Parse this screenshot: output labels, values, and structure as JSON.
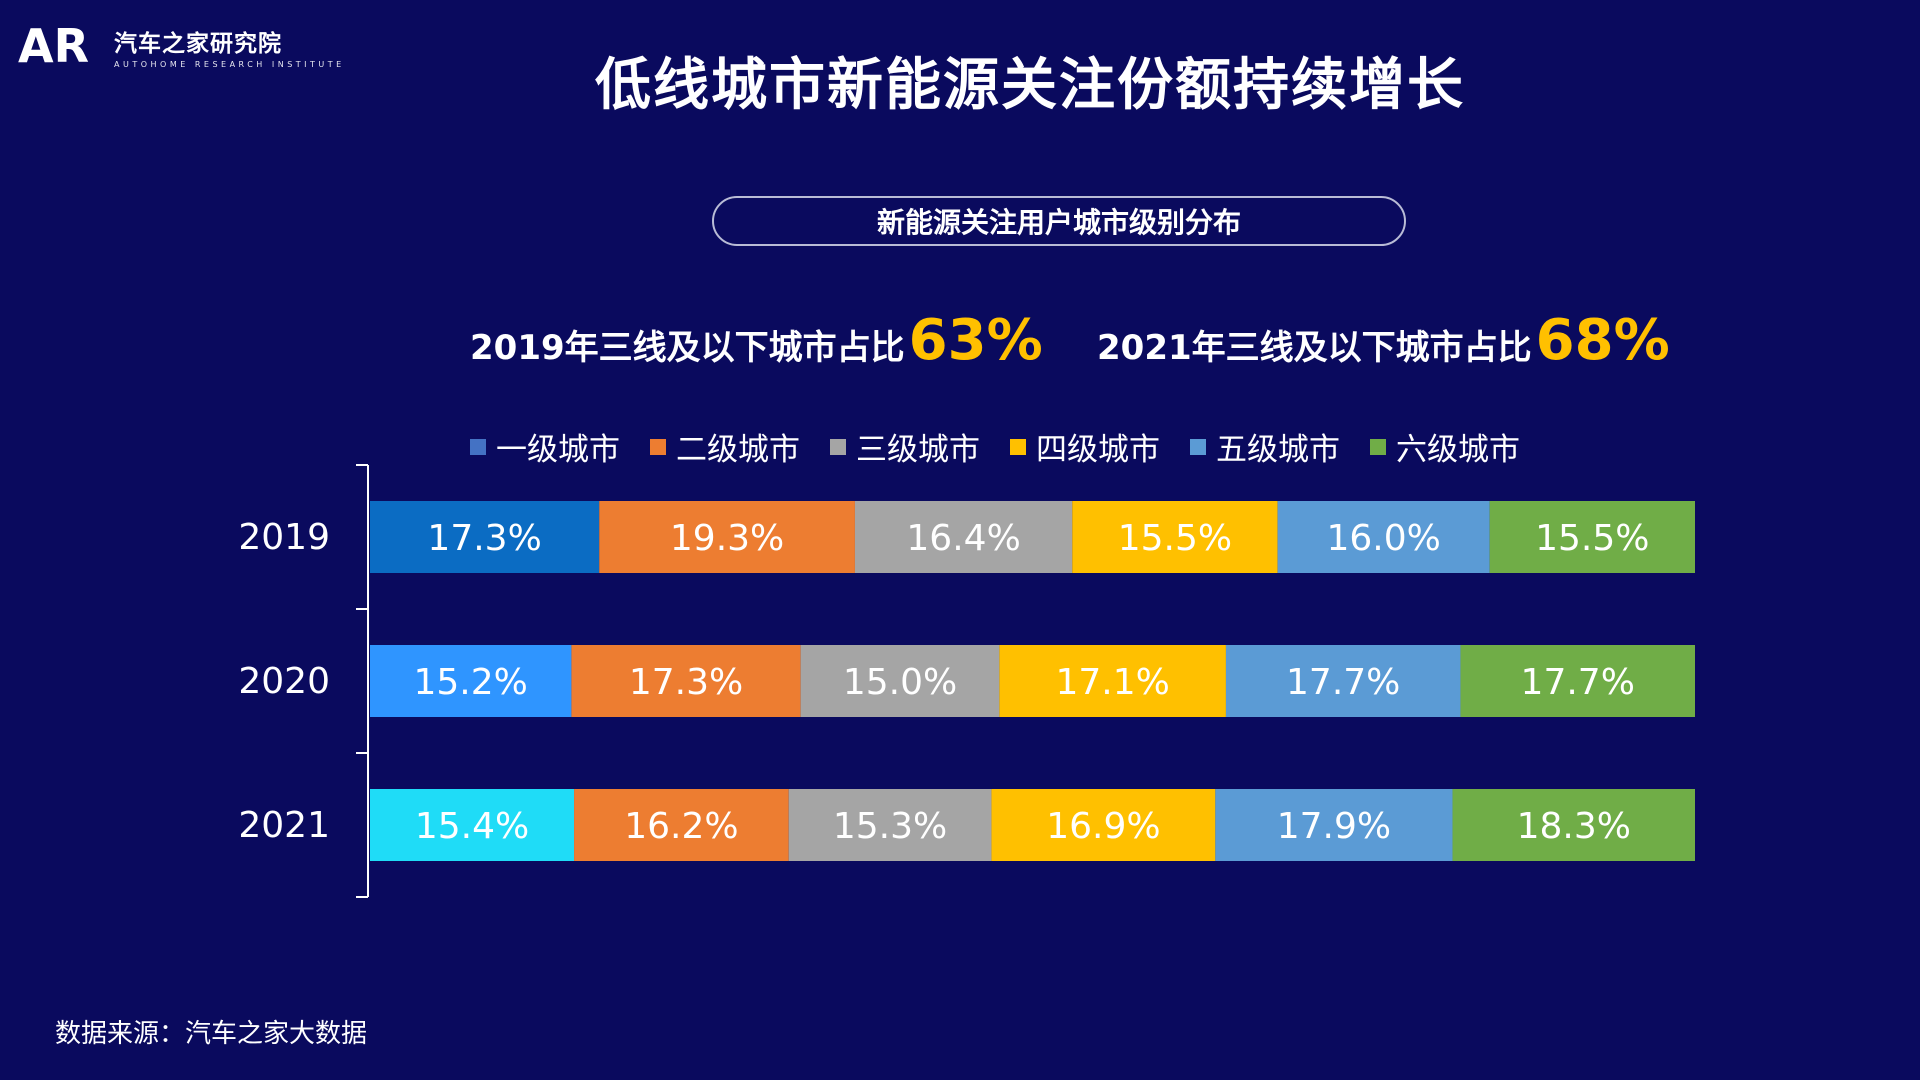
{
  "brand": {
    "mark": "AR",
    "name_cn": "汽车之家研究院",
    "name_en": "AUTOHOME RESEARCH INSTITUTE"
  },
  "title": "低线城市新能源关注份额持续增长",
  "subtitle": "新能源关注用户城市级别分布",
  "stats": [
    {
      "label": "2019年三线及以下城市占比",
      "value": "63%"
    },
    {
      "label": "2021年三线及以下城市占比",
      "value": "68%"
    }
  ],
  "colors": {
    "background": "#0a0a5e",
    "highlight": "#ffc000"
  },
  "chart_data": {
    "type": "bar",
    "orientation": "horizontal-stacked-100",
    "categories": [
      "2019",
      "2020",
      "2021"
    ],
    "series": [
      {
        "name": "一级城市",
        "values": [
          17.3,
          15.2,
          15.4
        ],
        "colors": [
          "#0b6cc3",
          "#2f95ff",
          "#1fdcf7"
        ],
        "legend_color": "#4472c4"
      },
      {
        "name": "二级城市",
        "values": [
          19.3,
          17.3,
          16.2
        ],
        "colors": [
          "#ed7d31",
          "#ed7d31",
          "#ed7d31"
        ],
        "legend_color": "#ed7d31"
      },
      {
        "name": "三级城市",
        "values": [
          16.4,
          15.0,
          15.3
        ],
        "colors": [
          "#a5a5a5",
          "#a5a5a5",
          "#a5a5a5"
        ],
        "legend_color": "#a5a5a5"
      },
      {
        "name": "四级城市",
        "values": [
          15.5,
          17.1,
          16.9
        ],
        "colors": [
          "#ffc000",
          "#ffc000",
          "#ffc000"
        ],
        "legend_color": "#ffc000"
      },
      {
        "name": "五级城市",
        "values": [
          16.0,
          17.7,
          17.9
        ],
        "colors": [
          "#5b9bd5",
          "#5b9bd5",
          "#5b9bd5"
        ],
        "legend_color": "#5b9bd5"
      },
      {
        "name": "六级城市",
        "values": [
          15.5,
          17.7,
          18.3
        ],
        "colors": [
          "#70ad47",
          "#70ad47",
          "#70ad47"
        ],
        "legend_color": "#70ad47"
      }
    ],
    "data_label_suffix": "%",
    "legend_position": "top"
  },
  "source": "数据来源：汽车之家大数据"
}
